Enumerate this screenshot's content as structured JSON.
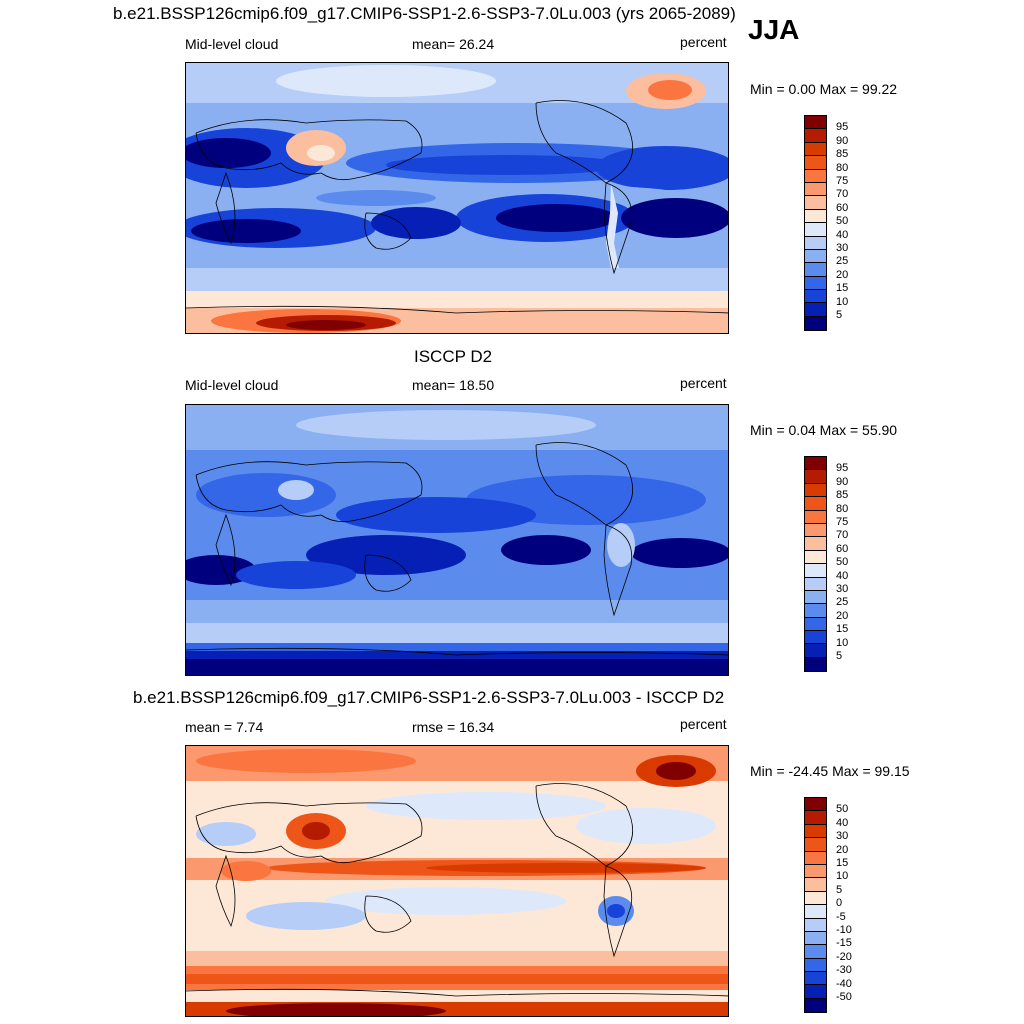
{
  "season": "JJA",
  "panels": [
    {
      "title": "b.e21.BSSP126cmip6.f09_g17.CMIP6-SSP1-2.6-SSP3-7.0Lu.003 (yrs 2065-2089)",
      "left": "Mid-level cloud",
      "center": "mean=  26.24",
      "right": "percent",
      "minmax": "Min =   0.00 Max =  99.22",
      "scale": "abs"
    },
    {
      "title": "ISCCP D2",
      "left": "Mid-level cloud",
      "center": "mean=  18.50",
      "right": "percent",
      "minmax": "Min =   0.04 Max =  55.90",
      "scale": "abs"
    },
    {
      "title": "b.e21.BSSP126cmip6.f09_g17.CMIP6-SSP1-2.6-SSP3-7.0Lu.003 - ISCCP D2",
      "left": "mean =   7.74",
      "center": "rmse =  16.34",
      "right": "percent",
      "minmax": "Min = -24.45 Max =  99.15",
      "scale": "diff"
    }
  ],
  "colorbars": {
    "abs": {
      "labels": [
        "95",
        "90",
        "85",
        "80",
        "75",
        "70",
        "60",
        "50",
        "40",
        "30",
        "25",
        "20",
        "15",
        "10",
        "5"
      ],
      "colors": [
        "#800000",
        "#b51b00",
        "#d93a00",
        "#ee5518",
        "#fa7540",
        "#fb986e",
        "#fbbfa0",
        "#fde8d8",
        "#dde8fb",
        "#b5cdf7",
        "#8ab0f1",
        "#5b8ced",
        "#3466e8",
        "#1743d8",
        "#0620b5",
        "#00007f"
      ]
    },
    "diff": {
      "labels": [
        "50",
        "40",
        "30",
        "20",
        "15",
        "10",
        "5",
        "0",
        "-5",
        "-10",
        "-15",
        "-20",
        "-30",
        "-40",
        "-50"
      ],
      "colors": [
        "#800000",
        "#b51b00",
        "#d93a00",
        "#ee5518",
        "#fa7540",
        "#fb986e",
        "#fbbfa0",
        "#fde8d8",
        "#dde8fb",
        "#b5cdf7",
        "#8ab0f1",
        "#5b8ced",
        "#3466e8",
        "#1743d8",
        "#0620b5",
        "#00007f"
      ]
    }
  }
}
